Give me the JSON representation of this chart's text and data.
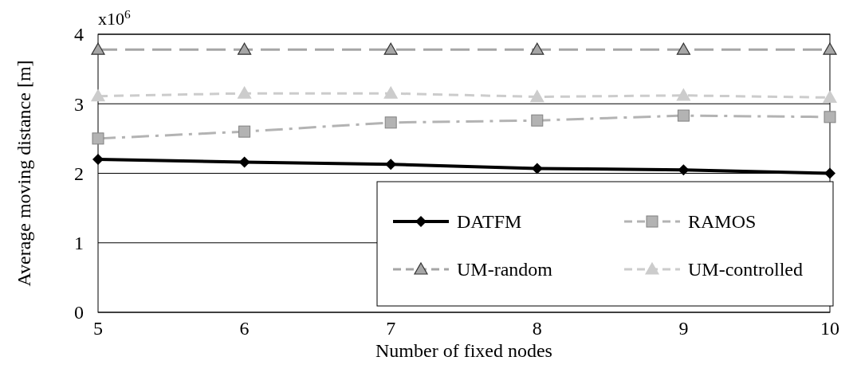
{
  "chart_data": {
    "type": "line",
    "xlabel": "Number of fixed nodes",
    "ylabel": "Average moving distance [m]",
    "annotations": [
      "x10$^{6}$"
    ],
    "x": [
      5,
      6,
      7,
      8,
      9,
      10
    ],
    "xlim": [
      5,
      10
    ],
    "xticks": [
      5,
      6,
      7,
      8,
      9,
      10
    ],
    "ylim": [
      0,
      4
    ],
    "yticks": [
      0,
      1,
      2,
      3,
      4
    ],
    "grid": "y",
    "legend": "bottom right",
    "series": [
      {
        "name": "DATFM",
        "color": "#000000",
        "marker": "diamond",
        "line_style": "solid",
        "values": [
          2.2,
          2.16,
          2.13,
          2.07,
          2.05,
          2.0
        ]
      },
      {
        "name": "RAMOS",
        "color": "#b3b3b3",
        "marker": "square",
        "line_style": "dashdot",
        "values": [
          2.5,
          2.6,
          2.73,
          2.76,
          2.83,
          2.81
        ]
      },
      {
        "name": "UM-random",
        "color": "#a6a6a6",
        "marker": "triangle",
        "line_style": "longdash",
        "values": [
          3.78,
          3.78,
          3.78,
          3.78,
          3.78,
          3.78
        ]
      },
      {
        "name": "UM-controlled",
        "color": "#cccccc",
        "marker": "triangle",
        "line_style": "dashed",
        "values": [
          3.11,
          3.15,
          3.15,
          3.1,
          3.12,
          3.09
        ]
      }
    ]
  }
}
